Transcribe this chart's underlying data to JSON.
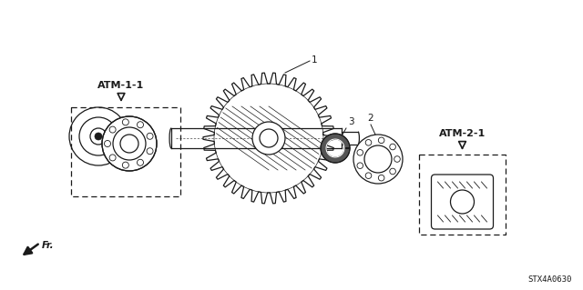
{
  "background_color": "#ffffff",
  "line_color": "#1a1a1a",
  "gray_color": "#888888",
  "label_atm1": "ATM-1-1",
  "label_atm2": "ATM-2-1",
  "label_1": "1",
  "label_2": "2",
  "label_3": "3",
  "label_fr": "Fr.",
  "watermark": "STX4A0630",
  "fig_width": 6.4,
  "fig_height": 3.19,
  "dpi": 100
}
